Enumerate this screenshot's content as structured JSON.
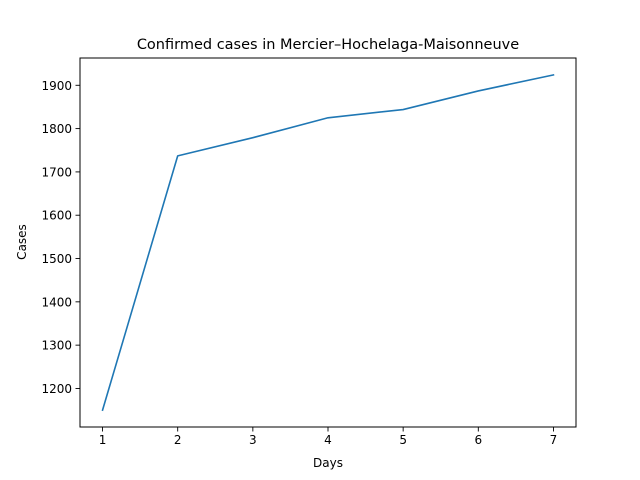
{
  "chart_data": {
    "type": "line",
    "title": "Confirmed cases in Mercier–Hochelaga-Maisonneuve",
    "xlabel": "Days",
    "ylabel": "Cases",
    "x": [
      1,
      2,
      3,
      4,
      5,
      6,
      7
    ],
    "series": [
      {
        "values": [
          1150,
          1737,
          1779,
          1825,
          1844,
          1887,
          1924
        ],
        "color": "#1f77b4"
      }
    ],
    "xlim": [
      0.7,
      7.3
    ],
    "ylim": [
      1111,
      1963
    ],
    "xticks": [
      1,
      2,
      3,
      4,
      5,
      6,
      7
    ],
    "yticks": [
      1200,
      1300,
      1400,
      1500,
      1600,
      1700,
      1800,
      1900
    ],
    "grid": false,
    "legend": false
  }
}
